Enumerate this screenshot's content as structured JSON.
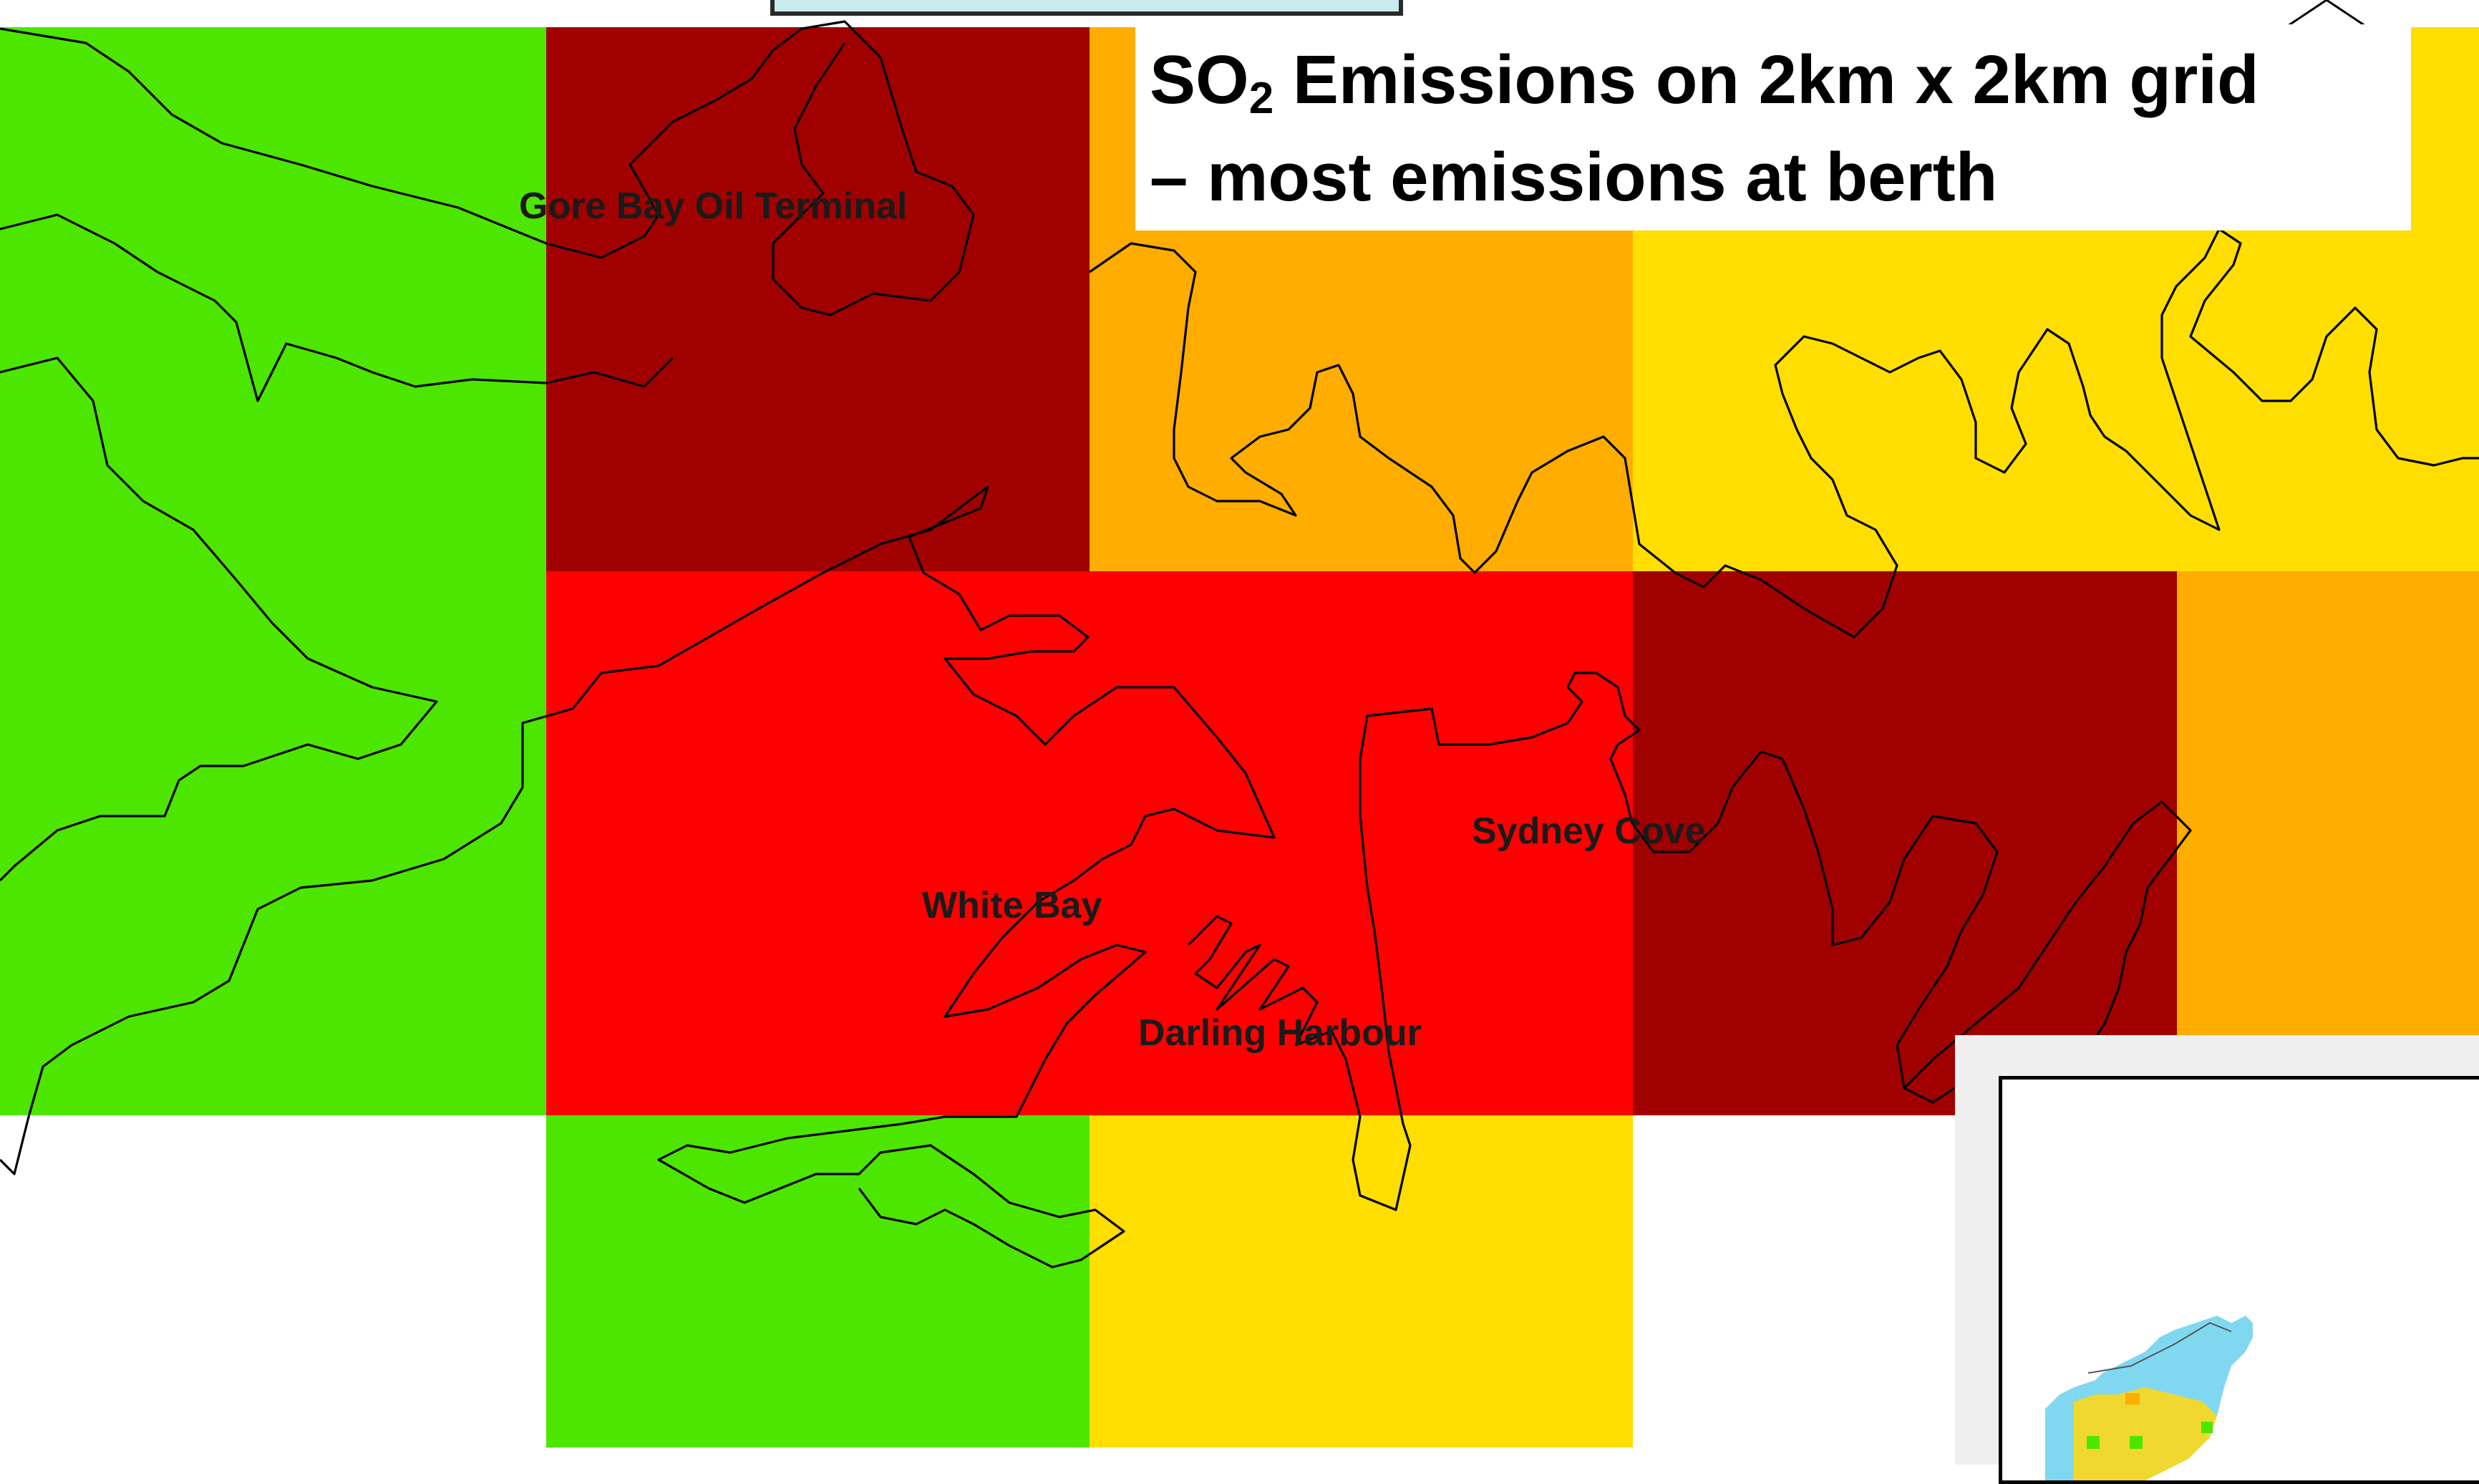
{
  "title": {
    "line1_prefix": "SO",
    "line1_sub": "2",
    "line1_suffix": " Emissions on 2km x 2km grid",
    "line2": "– most emissions at berth"
  },
  "legend_colors": {
    "very_high": "#a00000",
    "high": "#ff0000",
    "medium": "#ffad00",
    "low_medium": "#ffde00",
    "low": "#4de600",
    "none": "#ffffff"
  },
  "place_labels": [
    {
      "id": "gore-bay",
      "text": "Gore Bay Oil Terminal"
    },
    {
      "id": "white-bay",
      "text": "White Bay"
    },
    {
      "id": "sydney-cove",
      "text": "Sydney Cove"
    },
    {
      "id": "darling-harbour",
      "text": "Darling Harbour"
    }
  ],
  "grid": {
    "rows": 3,
    "cols": 5,
    "cell_km": 2,
    "levels": [
      [
        "low",
        "very_high",
        "medium",
        "low_medium",
        "low_medium"
      ],
      [
        "low",
        "high",
        "high",
        "very_high",
        "medium"
      ],
      [
        "none",
        "low",
        "low_medium",
        "none",
        "none"
      ]
    ]
  }
}
